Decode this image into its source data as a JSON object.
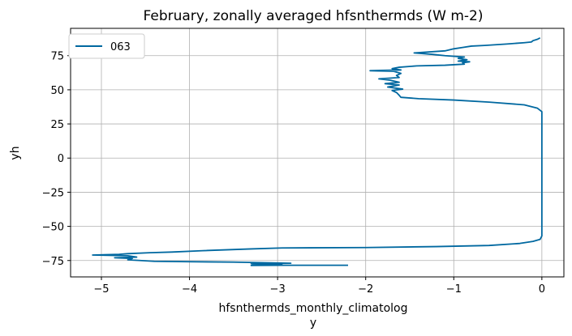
{
  "chart_data": {
    "type": "line",
    "title": "February, zonally averaged hfsnthermds (W m-2)",
    "xlabel_line1": "hfsnthermds_monthly_climatolog",
    "xlabel_line2": "y",
    "ylabel": "yh",
    "xlim": [
      -5.35,
      0.25
    ],
    "ylim": [
      -87,
      95
    ],
    "xticks": [
      -5,
      -4,
      -3,
      -2,
      -1,
      0
    ],
    "xtick_labels": [
      "−5",
      "−4",
      "−3",
      "−2",
      "−1",
      "0"
    ],
    "yticks": [
      -75,
      -50,
      -25,
      0,
      25,
      50,
      75
    ],
    "ytick_labels": [
      "−75",
      "−50",
      "−25",
      "0",
      "25",
      "50",
      "75"
    ],
    "grid": true,
    "legend": {
      "position": "upper-left",
      "entries": [
        "063"
      ]
    },
    "series": [
      {
        "name": "063",
        "color": "#0068a0",
        "points": [
          [
            -2.2,
            -78.5
          ],
          [
            -2.9,
            -78.5
          ],
          [
            -3.3,
            -78.6
          ],
          [
            -3.25,
            -77.8
          ],
          [
            -2.95,
            -77.5
          ],
          [
            -3.3,
            -77.3
          ],
          [
            -2.85,
            -77.0
          ],
          [
            -3.5,
            -76.2
          ],
          [
            -4.4,
            -75.6
          ],
          [
            -4.7,
            -74.5
          ],
          [
            -4.65,
            -73.5
          ],
          [
            -4.85,
            -73.0
          ],
          [
            -4.6,
            -72.5
          ],
          [
            -4.7,
            -71.5
          ],
          [
            -5.1,
            -71.0
          ],
          [
            -4.8,
            -70.5
          ],
          [
            -4.7,
            -70.0
          ],
          [
            -4.45,
            -69.3
          ],
          [
            -4.2,
            -68.8
          ],
          [
            -3.85,
            -67.8
          ],
          [
            -3.3,
            -66.5
          ],
          [
            -2.95,
            -65.8
          ],
          [
            -2.0,
            -65.5
          ],
          [
            -1.2,
            -64.8
          ],
          [
            -0.6,
            -64.0
          ],
          [
            -0.25,
            -62.5
          ],
          [
            -0.1,
            -61.0
          ],
          [
            -0.02,
            -59.5
          ],
          [
            0.0,
            -57.0
          ],
          [
            0.0,
            -45.0
          ],
          [
            0.0,
            -25.0
          ],
          [
            0.0,
            0.0
          ],
          [
            0.0,
            25.0
          ],
          [
            0.0,
            34.0
          ],
          [
            -0.05,
            36.5
          ],
          [
            -0.2,
            39.0
          ],
          [
            -0.6,
            41.0
          ],
          [
            -1.0,
            42.5
          ],
          [
            -1.4,
            43.5
          ],
          [
            -1.6,
            44.5
          ],
          [
            -1.62,
            46.0
          ],
          [
            -1.65,
            48.0
          ],
          [
            -1.7,
            49.5
          ],
          [
            -1.58,
            50.5
          ],
          [
            -1.75,
            52.0
          ],
          [
            -1.62,
            53.5
          ],
          [
            -1.78,
            54.5
          ],
          [
            -1.62,
            55.5
          ],
          [
            -1.72,
            57.0
          ],
          [
            -1.85,
            58.0
          ],
          [
            -1.62,
            59.0
          ],
          [
            -1.65,
            60.5
          ],
          [
            -1.6,
            62.0
          ],
          [
            -1.68,
            63.5
          ],
          [
            -1.95,
            64.0
          ],
          [
            -1.6,
            64.5
          ],
          [
            -1.7,
            65.5
          ],
          [
            -1.62,
            66.5
          ],
          [
            -1.42,
            67.5
          ],
          [
            -1.1,
            68.0
          ],
          [
            -0.88,
            68.8
          ],
          [
            -0.9,
            69.8
          ],
          [
            -0.82,
            70.5
          ],
          [
            -0.95,
            71.0
          ],
          [
            -0.85,
            72.0
          ],
          [
            -0.95,
            73.0
          ],
          [
            -0.88,
            74.0
          ],
          [
            -1.1,
            75.0
          ],
          [
            -1.25,
            76.0
          ],
          [
            -1.45,
            77.0
          ],
          [
            -1.1,
            78.5
          ],
          [
            -1.0,
            80.0
          ],
          [
            -0.9,
            81.0
          ],
          [
            -0.8,
            82.0
          ],
          [
            -0.65,
            82.5
          ],
          [
            -0.4,
            83.5
          ],
          [
            -0.2,
            84.5
          ],
          [
            -0.12,
            85.0
          ],
          [
            -0.1,
            86.0
          ],
          [
            -0.05,
            87.0
          ],
          [
            -0.02,
            88.0
          ]
        ]
      }
    ]
  }
}
